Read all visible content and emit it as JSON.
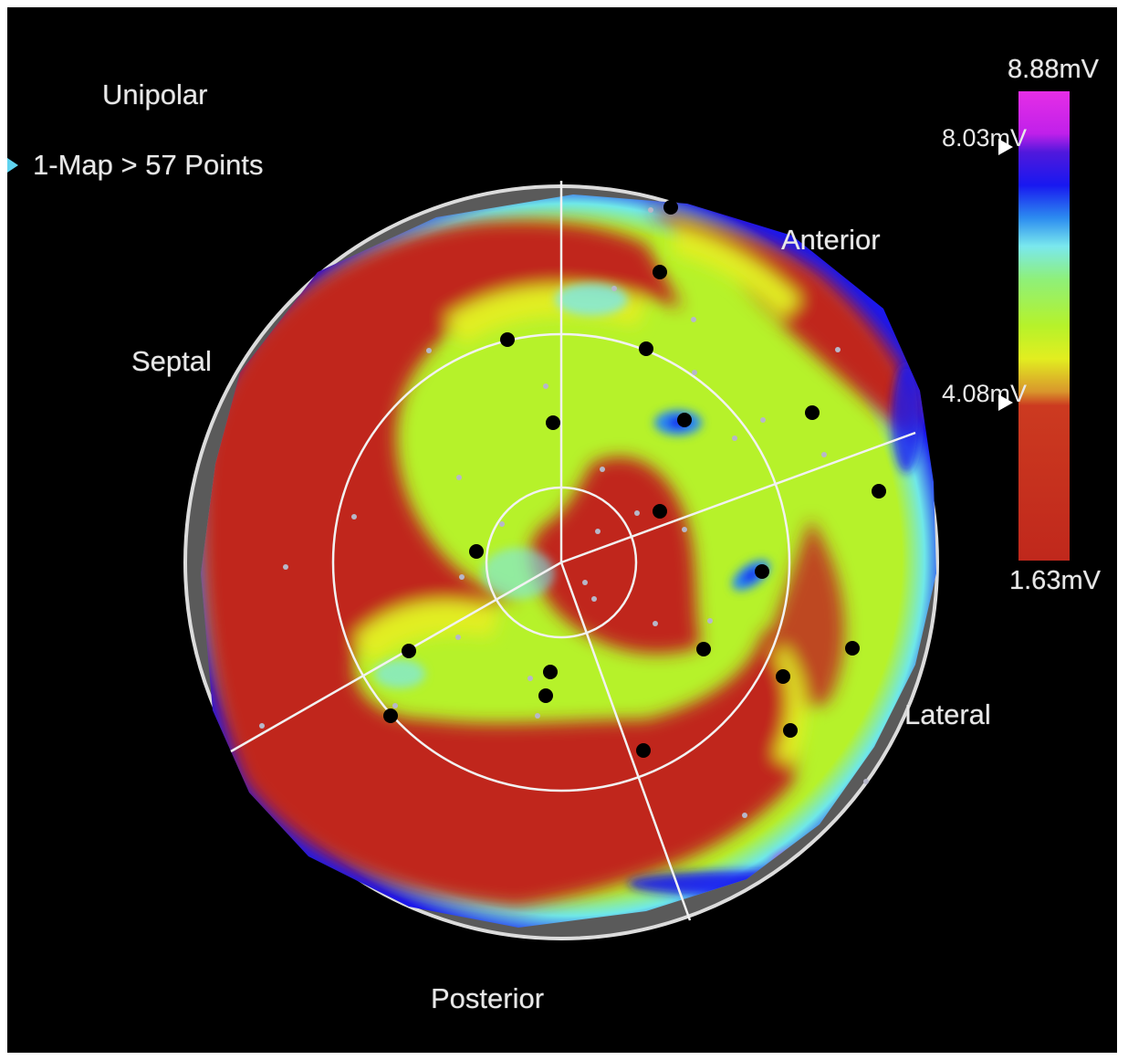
{
  "header": {
    "title": "Unipolar",
    "map_label": "1-Map > 57 Points"
  },
  "orientation": {
    "anterior": "Anterior",
    "septal": "Septal",
    "lateral": "Lateral",
    "posterior": "Posterior"
  },
  "colorbar": {
    "max": "8.88mV",
    "upper_threshold": "8.03mV",
    "lower_threshold": "4.08mV",
    "min": "1.63mV"
  },
  "colors": {
    "low_voltage": "#c0281c",
    "mid_voltage": "#b6f22a",
    "high_voltage": "#1818f0",
    "max_voltage": "#e62ee6",
    "border_gray": "#5a5a5a",
    "accent": "#5fd3ef"
  },
  "icons": {
    "map_selector": "cyan-triangle-icon",
    "threshold_marker": "white-triangle-marker-icon"
  }
}
